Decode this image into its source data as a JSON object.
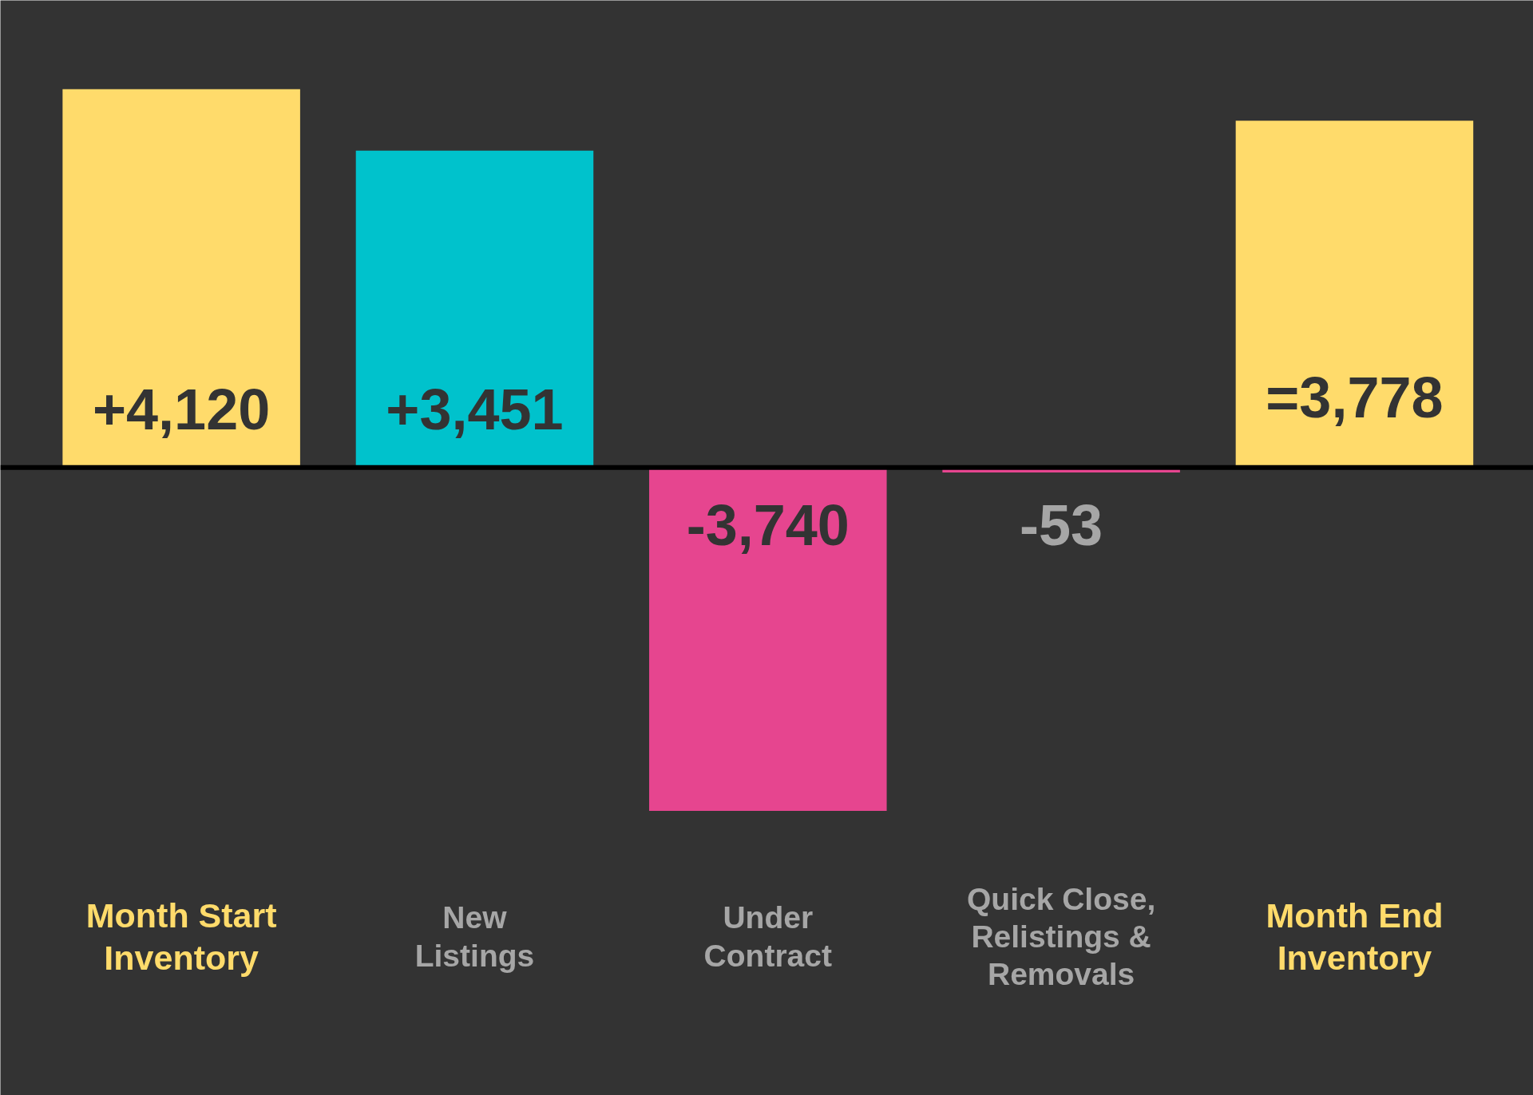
{
  "chart_data": {
    "type": "bar",
    "categories": [
      "Month Start\nInventory",
      "New\nListings",
      "Under\nContract",
      "Quick Close,\nRelistings &\nRemovals",
      "Month End\nInventory"
    ],
    "values": [
      4120,
      3451,
      -3740,
      -53,
      3778
    ],
    "colors": [
      "#ffdb6b",
      "#00c2cc",
      "#e6458f",
      "#e6458f",
      "#ffdb6b"
    ],
    "value_labels": [
      "+4,120",
      "+3,451",
      "-3,740",
      "-53",
      "=3,778"
    ]
  }
}
